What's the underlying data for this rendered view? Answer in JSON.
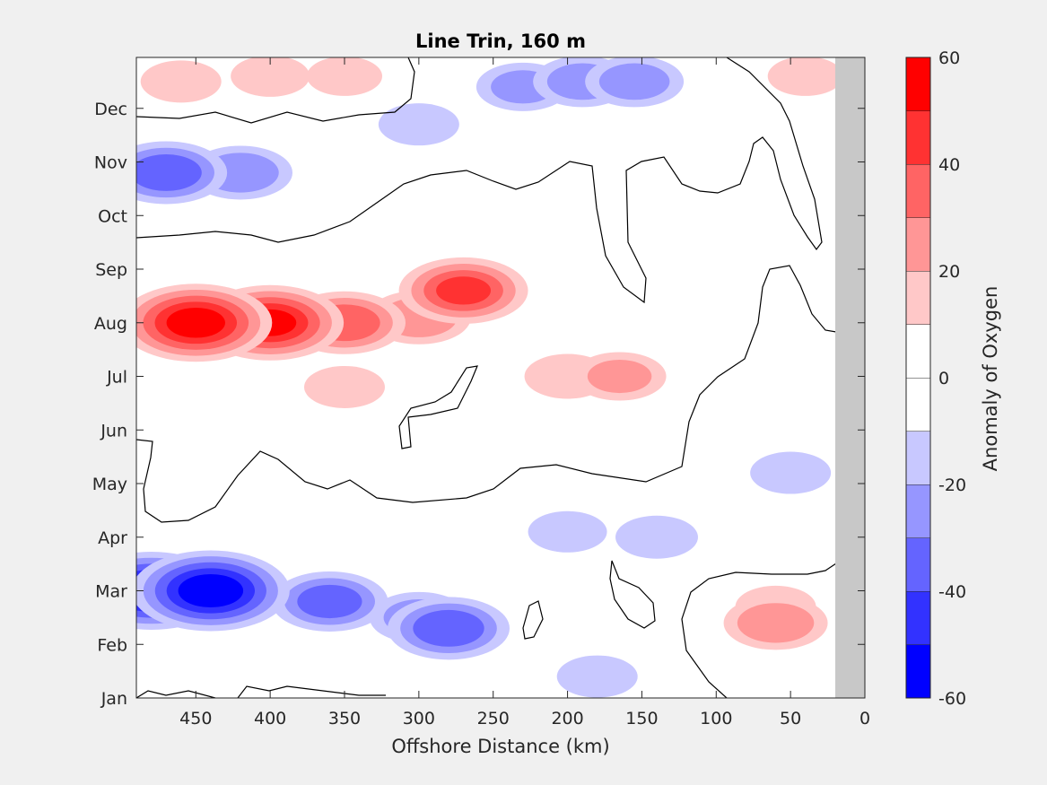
{
  "chart_data": {
    "type": "heatmap",
    "title": "Line Trin, 160 m",
    "xlabel": "Offshore Distance (km)",
    "ylabel": "",
    "xlim": [
      490,
      0
    ],
    "x_direction": "reversed",
    "x_ticks": [
      450,
      400,
      350,
      300,
      250,
      200,
      150,
      100,
      50,
      0
    ],
    "x_tick_labels": [
      "450",
      "400",
      "350",
      "300",
      "250",
      "200",
      "150",
      "100",
      "50",
      "0"
    ],
    "y_categories": [
      "Jan",
      "Feb",
      "Mar",
      "Apr",
      "May",
      "Jun",
      "Jul",
      "Aug",
      "Sep",
      "Oct",
      "Nov",
      "Dec"
    ],
    "ylim_months": [
      1,
      12.95
    ],
    "masked_region_km": [
      0,
      20
    ],
    "masked_color": "#c8c8c8",
    "grid": false,
    "zero_contour": "black lines",
    "colorbar": {
      "label": "Anomaly of Oxygen",
      "range": [
        -60,
        60
      ],
      "levels": [
        -60,
        -50,
        -40,
        -30,
        -20,
        -10,
        0,
        10,
        20,
        30,
        40,
        50,
        60
      ],
      "tick_values": [
        -60,
        -40,
        -20,
        0,
        20,
        40,
        60
      ],
      "tick_labels": [
        "-60",
        "-40",
        "-20",
        "0",
        "20",
        "40",
        "60"
      ],
      "colors": [
        "#0000ff",
        "#3232ff",
        "#6464ff",
        "#9696ff",
        "#c8c8ff",
        "#ffffff",
        "#ffffff",
        "#ffc8c8",
        "#ff9696",
        "#ff6464",
        "#ff3232",
        "#ff0000"
      ]
    },
    "anomaly_features": [
      {
        "month": 8.0,
        "km": 450,
        "value": 55
      },
      {
        "month": 8.0,
        "km": 400,
        "value": 52
      },
      {
        "month": 8.0,
        "km": 350,
        "value": 38
      },
      {
        "month": 8.1,
        "km": 300,
        "value": 28
      },
      {
        "month": 8.6,
        "km": 270,
        "value": 42
      },
      {
        "month": 7.0,
        "km": 200,
        "value": 18
      },
      {
        "month": 7.0,
        "km": 165,
        "value": 22
      },
      {
        "month": 6.8,
        "km": 350,
        "value": 15
      },
      {
        "month": 12.5,
        "km": 460,
        "value": 15
      },
      {
        "month": 12.6,
        "km": 400,
        "value": 14
      },
      {
        "month": 12.6,
        "km": 350,
        "value": 12
      },
      {
        "month": 12.6,
        "km": 40,
        "value": 12
      },
      {
        "month": 2.7,
        "km": 60,
        "value": 15
      },
      {
        "month": 2.4,
        "km": 60,
        "value": 28
      },
      {
        "month": 10.8,
        "km": 470,
        "value": -38
      },
      {
        "month": 10.8,
        "km": 420,
        "value": -28
      },
      {
        "month": 11.7,
        "km": 300,
        "value": -15
      },
      {
        "month": 12.5,
        "km": 190,
        "value": -25
      },
      {
        "month": 12.5,
        "km": 155,
        "value": -25
      },
      {
        "month": 12.4,
        "km": 230,
        "value": -22
      },
      {
        "month": 3.0,
        "km": 440,
        "value": -58
      },
      {
        "month": 3.0,
        "km": 480,
        "value": -55
      },
      {
        "month": 2.8,
        "km": 360,
        "value": -35
      },
      {
        "month": 2.5,
        "km": 300,
        "value": -25
      },
      {
        "month": 2.3,
        "km": 280,
        "value": -38
      },
      {
        "month": 5.2,
        "km": 50,
        "value": -15
      },
      {
        "month": 1.4,
        "km": 180,
        "value": -15
      },
      {
        "month": 4.1,
        "km": 200,
        "value": -14
      },
      {
        "month": 4.0,
        "km": 140,
        "value": -16
      }
    ]
  }
}
